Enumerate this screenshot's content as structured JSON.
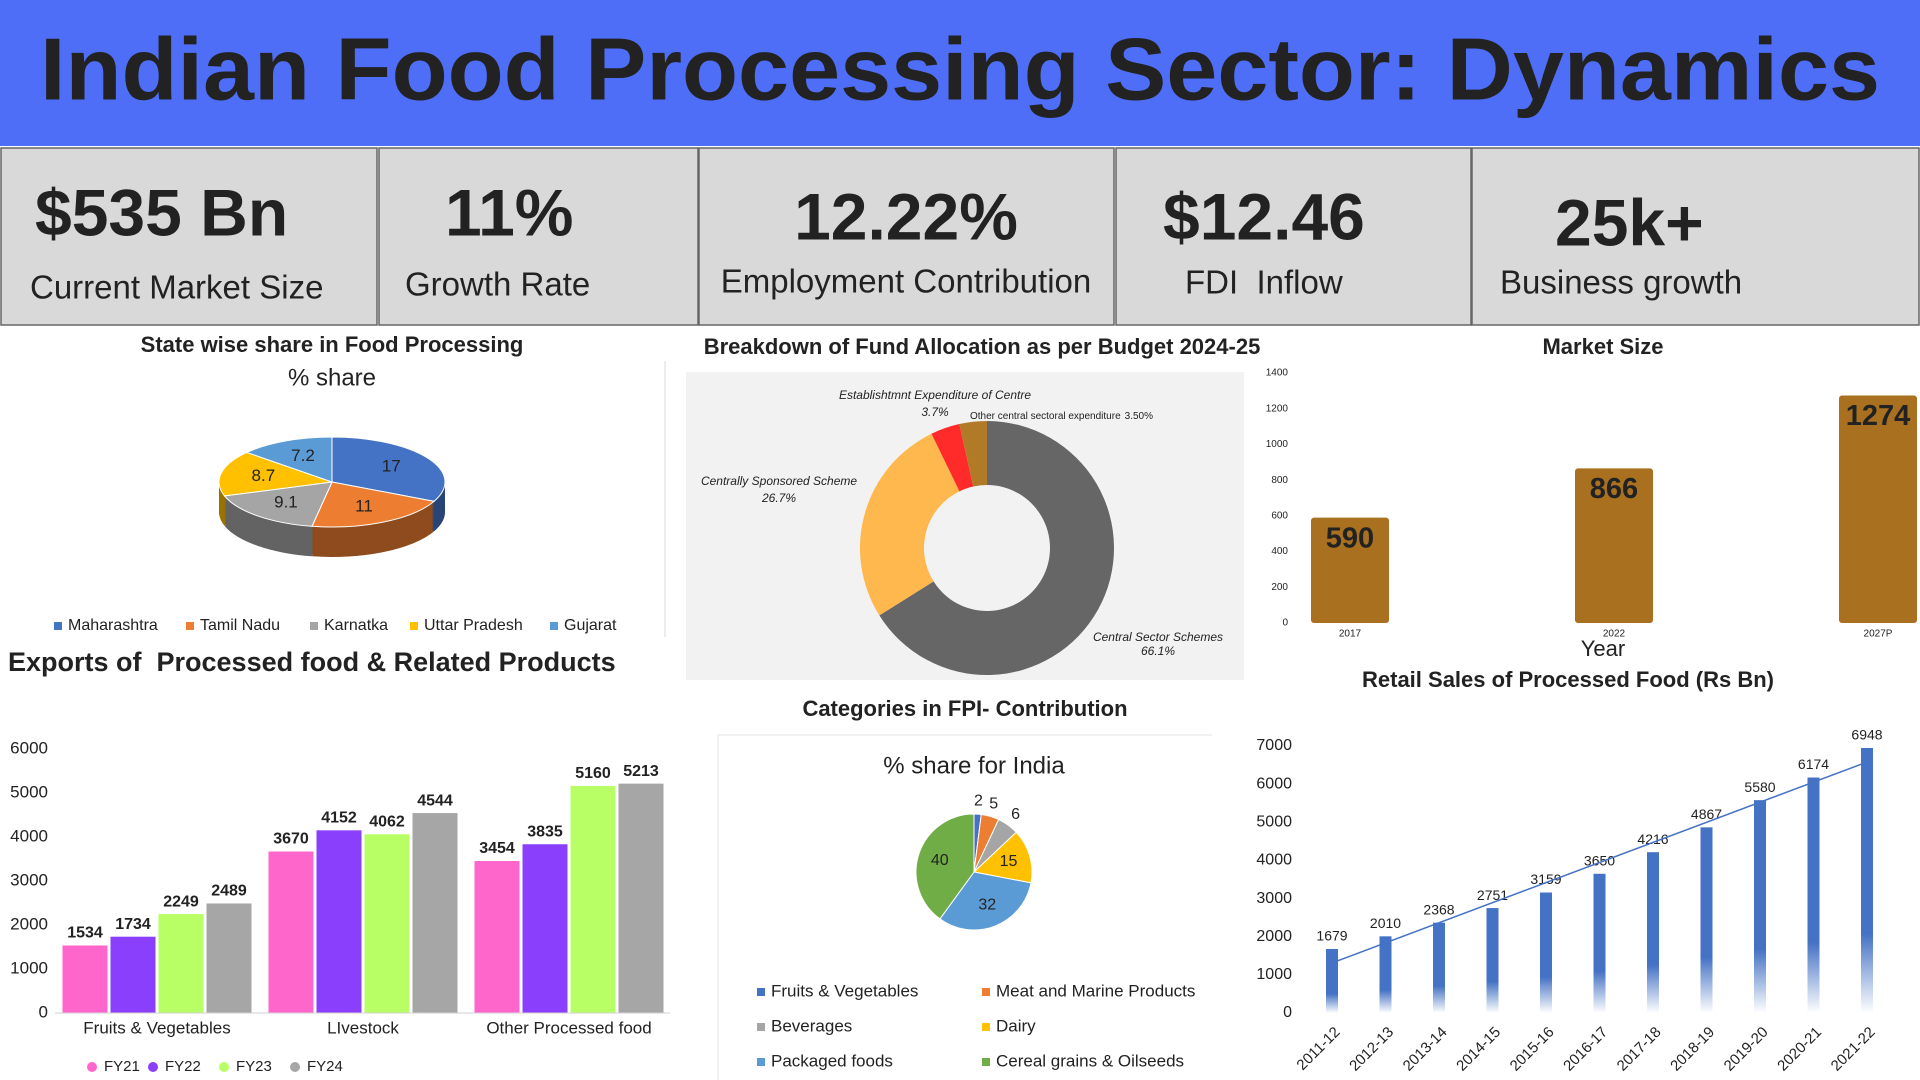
{
  "header": {
    "title": "Indian Food Processing Sector: Dynamics"
  },
  "kpis": [
    {
      "value": "$535 Bn",
      "label": "Current Market Size"
    },
    {
      "value": "11%",
      "label": "Growth Rate"
    },
    {
      "value": "12.22%",
      "label": "Employment Contribution"
    },
    {
      "value": "$12.46",
      "label": "FDI  Inflow"
    },
    {
      "value": "25k+",
      "label": "Business growth"
    }
  ],
  "chart_data": [
    {
      "type": "pie",
      "title": "State wise share in Food Processing",
      "subtitle": "% share",
      "categories": [
        "Maharashtra",
        "Tamil Nadu",
        "Karnatka",
        "Uttar Pradesh",
        "Gujarat"
      ],
      "values": [
        17,
        11,
        9.1,
        8.7,
        7.2
      ],
      "colors": [
        "#4472c4",
        "#ed7d31",
        "#a5a5a5",
        "#ffc000",
        "#5b9bd5"
      ],
      "legend": "bottom"
    },
    {
      "type": "donut",
      "title": "Breakdown of Fund Allocation as per Budget 2024-25",
      "categories": [
        "Central Sector Schemes",
        "Centrally Sponsored Scheme",
        "Establishtmnt Expenditure of Centre",
        "Other central sectoral expenditure"
      ],
      "values": [
        66.1,
        26.7,
        3.7,
        3.5
      ],
      "value_labels": [
        "66.1%",
        "26.7%",
        "3.7%",
        "3.50%"
      ],
      "colors": [
        "#666666",
        "#ffb84d",
        "#ff2a2a",
        "#b07a27"
      ]
    },
    {
      "type": "bar",
      "title": "Market Size",
      "xlabel": "Year",
      "categories": [
        "2017",
        "2022",
        "2027P"
      ],
      "values": [
        590,
        866,
        1274
      ],
      "color": "#a8701f",
      "ylim": [
        0,
        1400
      ],
      "yticks": [
        0,
        200,
        400,
        600,
        800,
        1000,
        1200,
        1400
      ]
    },
    {
      "type": "bar",
      "title": "Exports of  Processed food & Related Products",
      "categories": [
        "Fruits & Vegetables",
        "LIvestock",
        "Other Processed food"
      ],
      "series": [
        {
          "name": "FY21",
          "color": "#ff66cc",
          "values": [
            1534,
            3670,
            3454
          ]
        },
        {
          "name": "FY22",
          "color": "#8a3ffc",
          "values": [
            1734,
            4152,
            3835
          ]
        },
        {
          "name": "FY23",
          "color": "#b8ff66",
          "values": [
            2249,
            4062,
            5160
          ]
        },
        {
          "name": "FY24",
          "color": "#a6a6a6",
          "values": [
            2489,
            4544,
            5213
          ]
        }
      ],
      "ylim": [
        0,
        6000
      ],
      "yticks": [
        0,
        1000,
        2000,
        3000,
        4000,
        5000,
        6000
      ],
      "legend": "bottom"
    },
    {
      "type": "pie",
      "title": "Categories in FPI- Contribution",
      "subtitle": "% share for India",
      "categories": [
        "Fruits & Vegetables",
        "Meat and Marine Products",
        "Beverages",
        "Dairy",
        "Packaged foods",
        "Cereal grains & Oilseeds"
      ],
      "values": [
        2,
        5,
        6,
        15,
        32,
        40
      ],
      "colors": [
        "#4472c4",
        "#ed7d31",
        "#a5a5a5",
        "#ffc000",
        "#5b9bd5",
        "#70ad47"
      ],
      "legend": "bottom"
    },
    {
      "type": "bar",
      "title": "Retail Sales of Processed Food (Rs Bn)",
      "categories": [
        "2011-12",
        "2012-13",
        "2013-14",
        "2014-15",
        "2015-16",
        "2016-17",
        "2017-18",
        "2018-19",
        "2019-20",
        "2020-21",
        "2021-22"
      ],
      "values": [
        1679,
        2010,
        2368,
        2751,
        3159,
        3650,
        4216,
        4867,
        5580,
        6174,
        6948
      ],
      "color": "#4472c4",
      "ylim": [
        0,
        7000
      ],
      "yticks": [
        0,
        1000,
        2000,
        3000,
        4000,
        5000,
        6000,
        7000
      ],
      "trendline": true
    }
  ]
}
